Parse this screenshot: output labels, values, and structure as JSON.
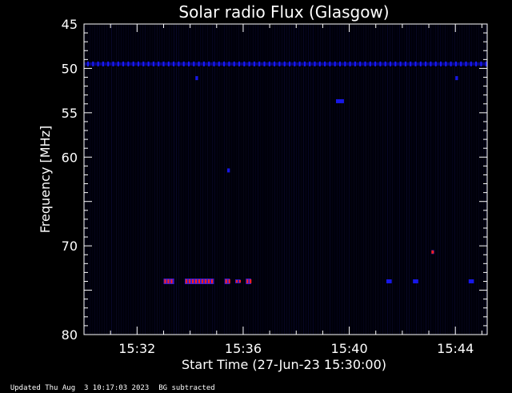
{
  "chart_data": {
    "type": "heatmap",
    "title": "Solar radio Flux (Glasgow)",
    "xlabel": "Start Time (27-Jun-23 15:30:00)",
    "ylabel": "Frequency [MHz]",
    "x_unit": "minutes after 15:30:00",
    "xlim": [
      0,
      15.2
    ],
    "ylim": [
      45,
      80
    ],
    "y_tick_labels": [
      "45",
      "50",
      "55",
      "60",
      "70",
      "80"
    ],
    "x_tick_labels": [
      "15:32",
      "15:36",
      "15:40",
      "15:44"
    ],
    "grid": false,
    "colors": {
      "background": "#000000",
      "plot_background": "#00000a",
      "low_intensity": "#1a1aff",
      "high_intensity": "#ff2020",
      "axes": "#ffffff"
    },
    "features": [
      {
        "name": "persistent interference line",
        "freq_mhz": 49.5,
        "t_start_min": 0.0,
        "t_end_min": 15.2,
        "intensity": "medium"
      },
      {
        "name": "burst cluster",
        "freq_mhz": 74.0,
        "t_start_min": 3.0,
        "t_end_min": 3.4,
        "intensity": "high"
      },
      {
        "name": "burst cluster",
        "freq_mhz": 74.0,
        "t_start_min": 3.8,
        "t_end_min": 4.9,
        "intensity": "high"
      },
      {
        "name": "burst cluster",
        "freq_mhz": 74.0,
        "t_start_min": 5.3,
        "t_end_min": 5.5,
        "intensity": "high"
      },
      {
        "name": "burst cluster",
        "freq_mhz": 74.0,
        "t_start_min": 5.7,
        "t_end_min": 5.9,
        "intensity": "medium"
      },
      {
        "name": "burst cluster",
        "freq_mhz": 74.0,
        "t_start_min": 6.1,
        "t_end_min": 6.3,
        "intensity": "high"
      },
      {
        "name": "spot",
        "freq_mhz": 74.0,
        "t_start_min": 11.4,
        "t_end_min": 11.6,
        "intensity": "low"
      },
      {
        "name": "spot",
        "freq_mhz": 74.0,
        "t_start_min": 12.4,
        "t_end_min": 12.6,
        "intensity": "low"
      },
      {
        "name": "spot",
        "freq_mhz": 74.0,
        "t_start_min": 14.5,
        "t_end_min": 14.7,
        "intensity": "low"
      },
      {
        "name": "spot",
        "freq_mhz": 53.7,
        "t_start_min": 9.5,
        "t_end_min": 9.8,
        "intensity": "low"
      },
      {
        "name": "spot",
        "freq_mhz": 70.7,
        "t_start_min": 13.1,
        "t_end_min": 13.2,
        "intensity": "medium"
      },
      {
        "name": "spot",
        "freq_mhz": 51.1,
        "t_start_min": 4.2,
        "t_end_min": 4.3,
        "intensity": "low"
      },
      {
        "name": "spot",
        "freq_mhz": 51.1,
        "t_start_min": 14.0,
        "t_end_min": 14.1,
        "intensity": "low"
      },
      {
        "name": "spot",
        "freq_mhz": 61.5,
        "t_start_min": 5.4,
        "t_end_min": 5.5,
        "intensity": "low"
      }
    ]
  },
  "footer": {
    "updated": "Updated Thu Aug  3 10:17:03 2023",
    "note": "BG subtracted"
  }
}
